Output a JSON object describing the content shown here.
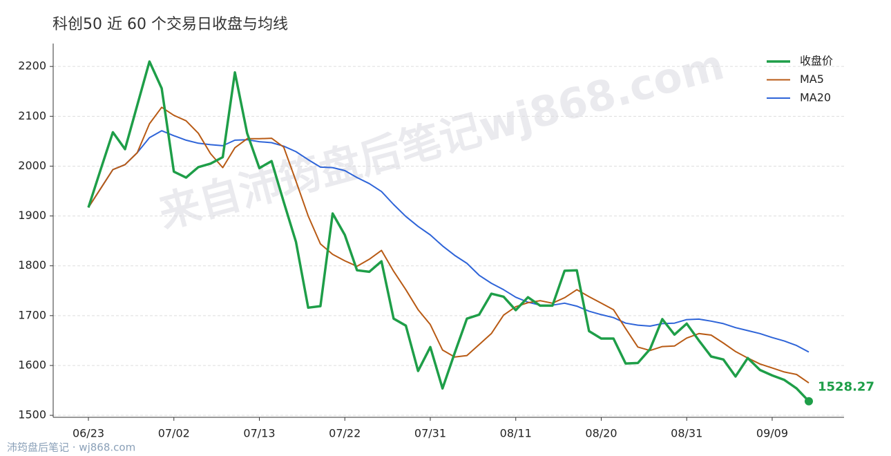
{
  "chart_data": {
    "type": "line",
    "title": "科创50 近 60 个交易日收盘与均线",
    "watermark": "来自沛筠盘后笔记wj868.com",
    "footer": "沛筠盘后笔记 · wj868.com",
    "categories": [
      "06/23",
      null,
      null,
      null,
      null,
      null,
      null,
      "07/02",
      null,
      null,
      null,
      null,
      null,
      null,
      "07/13",
      null,
      null,
      null,
      null,
      null,
      null,
      "07/22",
      null,
      null,
      null,
      null,
      null,
      null,
      "07/31",
      null,
      null,
      null,
      null,
      null,
      null,
      "08/11",
      null,
      null,
      null,
      null,
      null,
      null,
      "08/20",
      null,
      null,
      null,
      null,
      null,
      null,
      "08/31",
      null,
      null,
      null,
      null,
      null,
      null,
      "09/09",
      null,
      null,
      null
    ],
    "series": [
      {
        "name": "收盘价",
        "color": "#1e9e48",
        "values": [
          1917,
          1993,
          2068,
          2034,
          2122,
          2210,
          2156,
          1989,
          1977,
          1998,
          2005,
          2018,
          2188,
          2066,
          1996,
          2010,
          1928,
          1848,
          1716,
          1719,
          1905,
          1862,
          1791,
          1788,
          1809,
          1694,
          1680,
          1589,
          1637,
          1554,
          1625,
          1694,
          1702,
          1744,
          1738,
          1711,
          1737,
          1720,
          1720,
          1790,
          1791,
          1669,
          1654,
          1654,
          1604,
          1605,
          1633,
          1693,
          1662,
          1684,
          1650,
          1618,
          1612,
          1578,
          1615,
          1591,
          1580,
          1571,
          1554,
          1528.27
        ]
      },
      {
        "name": "MA5",
        "color": "#b85a14",
        "values": [
          1917,
          1955,
          1993,
          2003,
          2027,
          2085,
          2118,
          2102,
          2091,
          2066,
          2025,
          1997,
          2037,
          2055,
          2055,
          2056,
          2038,
          1970,
          1900,
          1844,
          1823,
          1810,
          1799,
          1813,
          1831,
          1789,
          1752,
          1712,
          1682,
          1631,
          1617,
          1620,
          1642,
          1664,
          1701,
          1718,
          1726,
          1730,
          1725,
          1736,
          1752,
          1738,
          1725,
          1712,
          1674,
          1637,
          1630,
          1638,
          1639,
          1655,
          1664,
          1661,
          1645,
          1628,
          1615,
          1603,
          1595,
          1587,
          1582,
          1565
        ]
      },
      {
        "name": "MA20",
        "color": "#2e64d8",
        "values": [
          1917,
          1955,
          1993,
          2003,
          2027,
          2057,
          2071,
          2061,
          2052,
          2046,
          2043,
          2041,
          2052,
          2053,
          2049,
          2047,
          2040,
          2029,
          2013,
          1998,
          1997,
          1991,
          1977,
          1965,
          1949,
          1923,
          1899,
          1879,
          1862,
          1840,
          1821,
          1805,
          1781,
          1765,
          1752,
          1737,
          1727,
          1721,
          1721,
          1725,
          1719,
          1709,
          1702,
          1696,
          1685,
          1681,
          1679,
          1684,
          1685,
          1692,
          1693,
          1689,
          1684,
          1676,
          1670,
          1664,
          1656,
          1649,
          1640,
          1627
        ]
      }
    ],
    "ylim": [
      1496,
      2246
    ],
    "yticks": [
      1500,
      1600,
      1700,
      1800,
      1900,
      2000,
      2100,
      2200
    ],
    "grid": true,
    "legend": "upper right"
  }
}
